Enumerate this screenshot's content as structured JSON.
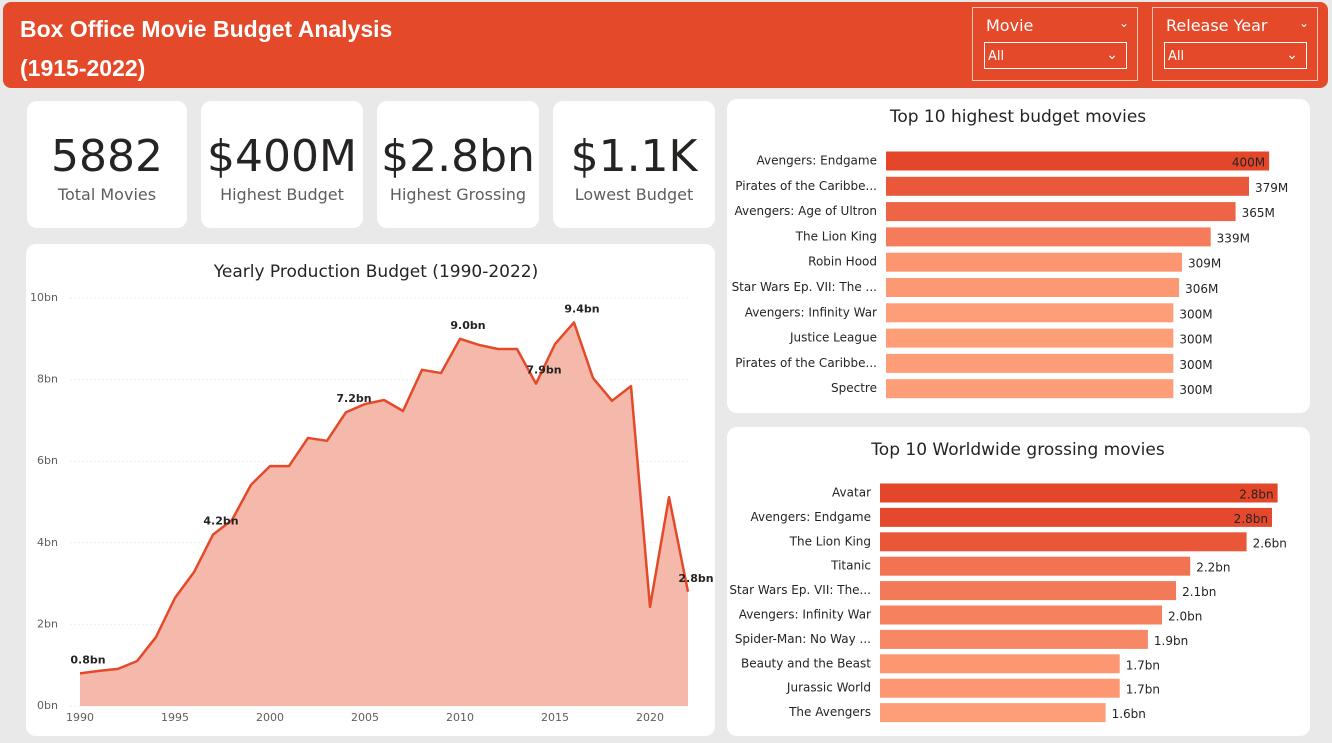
{
  "header": {
    "title": "Box Office Movie Budget Analysis (1915-2022)",
    "filters": [
      {
        "label": "Movie",
        "value": "All"
      },
      {
        "label": "Release Year",
        "value": "All"
      }
    ]
  },
  "kpis": [
    {
      "value": 5882,
      "label": "Total Movies"
    },
    {
      "value": "$400M",
      "label": "Highest Budget"
    },
    {
      "value": "$2.8bn",
      "label": "Highest Grossing"
    },
    {
      "value": "$1.1K",
      "label": "Lowest Budget"
    }
  ],
  "chart_data": [
    {
      "type": "line",
      "title": "Yearly Production Budget (1990-2022)",
      "color": "#e4492a",
      "fill": "#f4b9aa",
      "x": [
        1990,
        1991,
        1992,
        1993,
        1994,
        1995,
        1996,
        1997,
        1998,
        1999,
        2000,
        2001,
        2002,
        2003,
        2004,
        2005,
        2006,
        2007,
        2008,
        2009,
        2010,
        2011,
        2012,
        2013,
        2014,
        2015,
        2016,
        2017,
        2018,
        2019,
        2020,
        2021,
        2022
      ],
      "values": [
        0.8,
        0.86,
        0.91,
        1.1,
        1.69,
        2.65,
        3.28,
        4.2,
        4.56,
        5.42,
        5.88,
        5.88,
        6.57,
        6.5,
        7.2,
        7.4,
        7.5,
        7.23,
        8.24,
        8.16,
        9.0,
        8.85,
        8.75,
        8.75,
        7.9,
        8.87,
        9.4,
        8.04,
        7.48,
        7.84,
        2.43,
        5.12,
        2.8
      ],
      "value_labels": [
        "0.8bn",
        null,
        null,
        null,
        null,
        null,
        null,
        "4.2bn",
        null,
        null,
        null,
        null,
        null,
        null,
        "7.2bn",
        null,
        null,
        null,
        null,
        null,
        "9.0bn",
        null,
        null,
        null,
        "7.9bn",
        null,
        "9.4bn",
        null,
        null,
        null,
        null,
        null,
        "2.8bn"
      ],
      "xlim": [
        1989.5,
        2022
      ],
      "xticks": [
        1990,
        1995,
        2000,
        2005,
        2010,
        2015,
        2020
      ],
      "ylim": [
        0,
        10
      ],
      "yticks": [
        {
          "value": 0,
          "label": "0bn"
        },
        {
          "value": 2,
          "label": "2bn"
        },
        {
          "value": 4,
          "label": "4bn"
        },
        {
          "value": 6,
          "label": "6bn"
        },
        {
          "value": 8,
          "label": "8bn"
        },
        {
          "value": 10,
          "label": "10bn"
        }
      ],
      "grid": true
    },
    {
      "type": "hbar",
      "title": "Top 10 highest budget movies",
      "color_scale": [
        "#fe9e78",
        "#e4462a"
      ],
      "categories": [
        "Avengers: Endgame",
        "Pirates of the Caribbe...",
        "Avengers: Age of Ultron",
        "The Lion King",
        "Robin Hood",
        "Star Wars Ep. VII: The ...",
        "Avengers: Infinity War",
        "Justice League",
        "Pirates of the Caribbe...",
        "Spectre"
      ],
      "values": [
        400,
        379,
        365,
        339,
        309,
        306,
        300,
        300,
        300,
        300
      ],
      "value_labels": [
        "400M",
        "379M",
        "365M",
        "339M",
        "309M",
        "306M",
        "300M",
        "300M",
        "300M",
        "300M"
      ],
      "xlim": [
        0,
        450
      ]
    },
    {
      "type": "hbar",
      "title": "Top 10 Worldwide grossing movies",
      "color_scale": [
        "#fe9e78",
        "#e4462a"
      ],
      "categories": [
        "Avatar",
        "Avengers: Endgame",
        "The Lion King",
        "Titanic",
        "Star Wars Ep. VII: The...",
        "Avengers: Infinity War",
        "Spider-Man: No Way ...",
        "Beauty and the Beast",
        "Jurassic World",
        "The Avengers"
      ],
      "values": [
        2.82,
        2.78,
        2.6,
        2.2,
        2.1,
        2.0,
        1.9,
        1.7,
        1.7,
        1.6
      ],
      "value_labels": [
        "2.8bn",
        "2.8bn",
        "2.6bn",
        "2.2bn",
        "2.1bn",
        "2.0bn",
        "1.9bn",
        "1.7bn",
        "1.7bn",
        "1.6bn"
      ],
      "xlim": [
        0,
        3.0
      ]
    }
  ]
}
